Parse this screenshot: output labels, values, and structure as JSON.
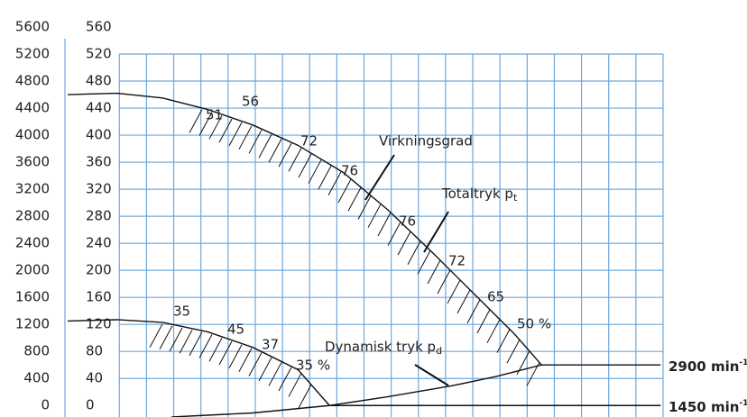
{
  "chart_data": {
    "type": "line",
    "xlim": [
      -2,
      20
    ],
    "xticks": [
      0,
      1,
      2,
      3,
      4,
      5,
      6,
      7,
      8,
      9,
      10,
      11,
      12,
      13,
      14,
      15,
      16,
      17,
      18,
      19,
      20
    ],
    "ylim": [
      -17,
      560
    ],
    "yticks": [
      0,
      40,
      80,
      120,
      160,
      200,
      240,
      280,
      320,
      360,
      400,
      440,
      480,
      520,
      560
    ],
    "y2lim": [
      -170,
      5600
    ],
    "y2ticks": [
      0,
      400,
      800,
      1200,
      1600,
      2000,
      2400,
      2800,
      3200,
      3600,
      4000,
      4400,
      4800,
      5200,
      5600
    ],
    "grid": true,
    "grid_color": "#6fa8dc",
    "color": "#111111",
    "series": [
      {
        "x": [
          -1.9,
          -0.07,
          1.59,
          3.25,
          4.91,
          6.57,
          8.23,
          9.89,
          11.55,
          13.2,
          14.53,
          15.53,
          19.91
        ],
        "values": [
          460,
          462,
          455,
          438,
          415,
          385,
          345,
          289,
          225,
          159,
          106,
          60,
          60
        ]
      },
      {
        "x": [
          -1.9,
          -0.07,
          1.59,
          3.25,
          4.91,
          6.57,
          7.73,
          19.91
        ],
        "values": [
          125,
          127,
          123,
          109,
          86,
          53,
          0,
          0
        ]
      },
      {
        "x": [
          1.92,
          4.91,
          7.73,
          9.89,
          12.21,
          13.87,
          15.53
        ],
        "values": [
          -17,
          -11,
          0,
          13,
          29,
          43,
          60
        ]
      }
    ],
    "efficiency_labels": [
      "51",
      "56",
      "72",
      "76",
      "76",
      "72",
      "65",
      "50 %",
      "35",
      "45",
      "37",
      "35 %"
    ],
    "labels": {
      "efficiency": "Virkningsgrad",
      "total": {
        "text": "Totaltryk p",
        "sub": "t"
      },
      "dynamic": {
        "text": "Dynamisk tryk p",
        "sub": "d"
      },
      "speed_high": {
        "text": "2900 min",
        "sup": "-1"
      },
      "speed_low": {
        "text": "1450 min",
        "sup": "-1"
      }
    }
  }
}
